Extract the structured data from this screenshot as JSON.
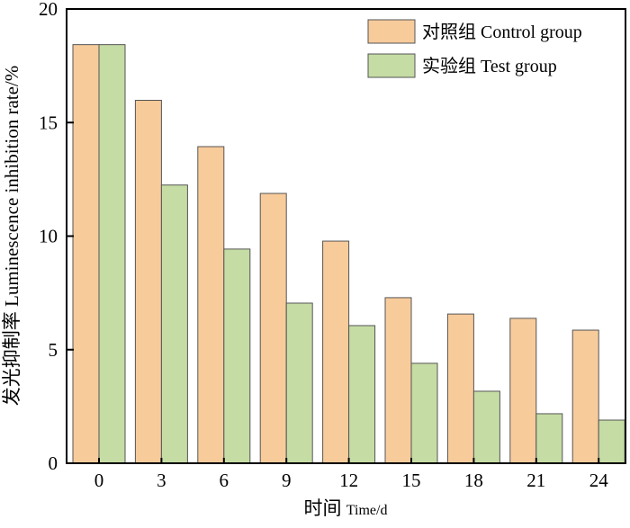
{
  "chart_data": {
    "type": "bar",
    "title": "",
    "xlabel_cn": "时间",
    "xlabel_en": "Time/d",
    "ylabel": "发光抑制率 Luminescence inhibition rate/%",
    "categories": [
      "0",
      "3",
      "6",
      "9",
      "12",
      "15",
      "18",
      "21",
      "24"
    ],
    "ylim": [
      0,
      20
    ],
    "yticks": [
      "0",
      "5",
      "10",
      "15",
      "20"
    ],
    "legend_position": "top-right",
    "series": [
      {
        "name": "对照组 Control group",
        "color": "#f8cb9b",
        "values": [
          18.43,
          15.98,
          13.94,
          11.88,
          9.78,
          7.29,
          6.57,
          6.38,
          5.86
        ]
      },
      {
        "name": "实验组 Test group",
        "color": "#c5dca4",
        "values": [
          18.43,
          12.25,
          9.43,
          7.05,
          6.06,
          4.4,
          3.17,
          2.18,
          1.9
        ]
      }
    ]
  }
}
